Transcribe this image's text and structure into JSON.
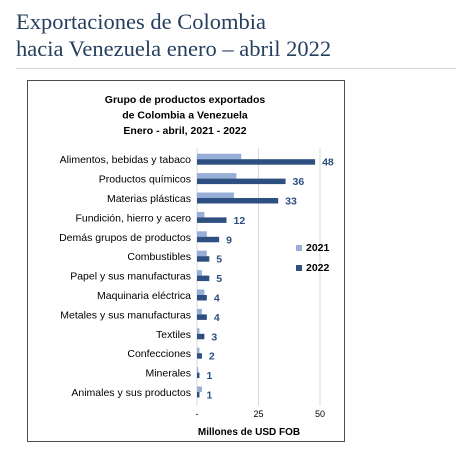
{
  "page": {
    "title_line1": "Exportaciones de Colombia",
    "title_line2": "hacia Venezuela enero – abril 2022"
  },
  "colors": {
    "series_2021": "#97aed6",
    "series_2022": "#2e4f82",
    "title": "#263f5e",
    "grid": "#d9d9d9"
  },
  "chart_data": {
    "type": "bar",
    "orientation": "horizontal",
    "title_lines": [
      "Grupo de productos exportados",
      "de Colombia a Venezuela",
      "Enero - abril, 2021 - 2022"
    ],
    "xlabel": "Millones de USD FOB",
    "xlim": [
      0,
      50
    ],
    "xticks": [
      0,
      25,
      50
    ],
    "xtick_labels": [
      "-",
      "25",
      "50"
    ],
    "grid": true,
    "legend_position": "right",
    "categories": [
      "Alimentos, bebidas y tabaco",
      "Productos químicos",
      "Materias plásticas",
      "Fundición, hierro y acero",
      "Demás grupos de productos",
      "Combustibles",
      "Papel y sus manufacturas",
      "Maquinaria eléctrica",
      "Metales y sus manufacturas",
      "Textiles",
      "Confecciones",
      "Minerales",
      "Animales y sus productos"
    ],
    "series": [
      {
        "name": "2021",
        "values": [
          18,
          16,
          15,
          3,
          4,
          4,
          2,
          3,
          2,
          1,
          1,
          0.5,
          2
        ]
      },
      {
        "name": "2022",
        "values": [
          48,
          36,
          33,
          12,
          9,
          5,
          5,
          4,
          4,
          3,
          2,
          1,
          1
        ]
      }
    ],
    "data_labels_2022": [
      "48",
      "36",
      "33",
      "12",
      "9",
      "5",
      "5",
      "4",
      "4",
      "3",
      "2",
      "1",
      "1"
    ]
  }
}
